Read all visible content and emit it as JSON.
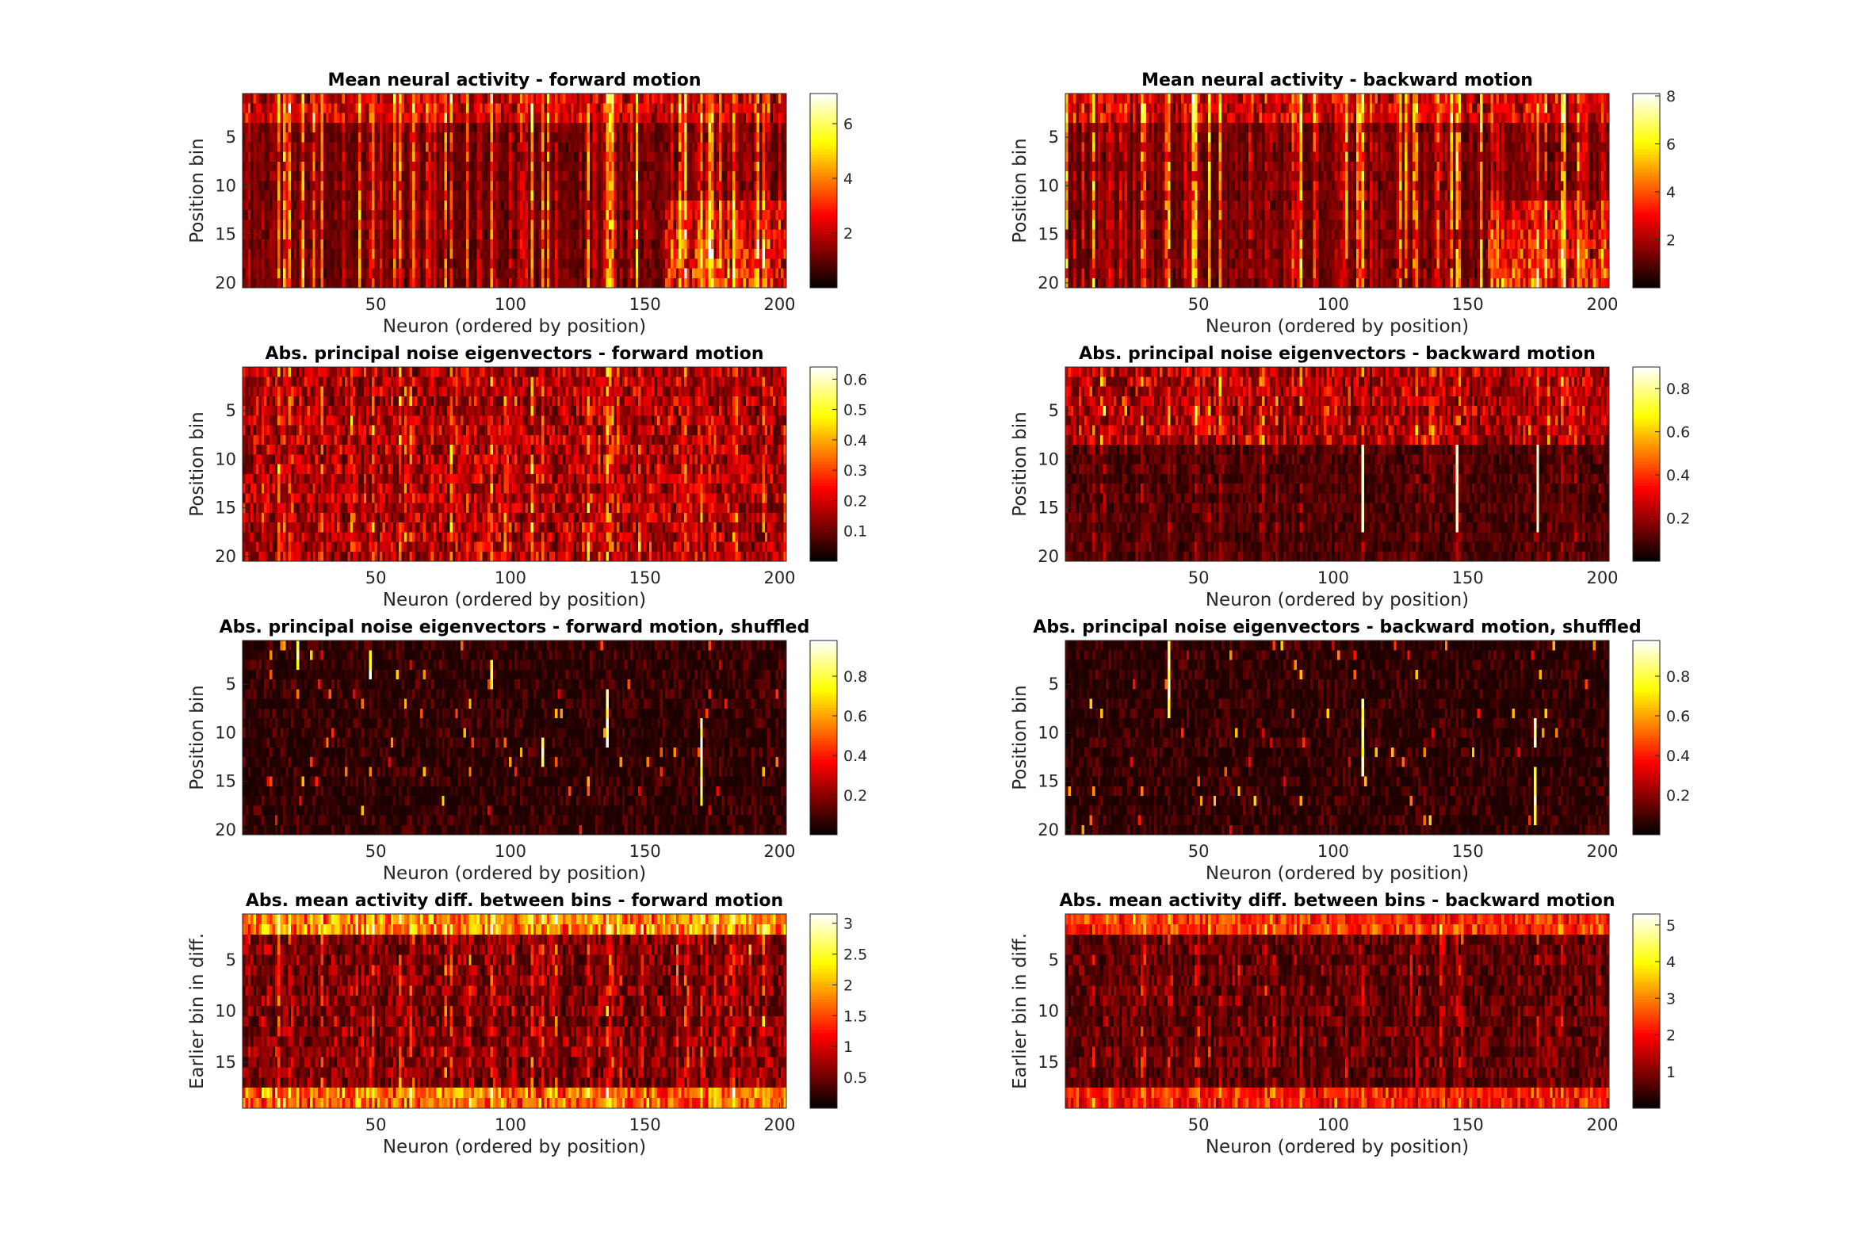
{
  "figure": {
    "background": "#ffffff",
    "colormap": "hot"
  },
  "chart_data": [
    {
      "type": "heatmap",
      "title": "Mean neural activity - forward motion",
      "xlabel": "Neuron (ordered by position)",
      "ylabel": "Position bin",
      "n_cols": 202,
      "n_rows": 20,
      "xticks": [
        50,
        100,
        150,
        200
      ],
      "yticks": [
        5,
        10,
        15,
        20
      ],
      "clim": [
        0,
        7.1
      ],
      "cbar_ticks": [
        2,
        4,
        6
      ],
      "cbar_ticklabels": [
        "2",
        "4",
        "6"
      ],
      "pattern": "activity",
      "direction": "forward",
      "seed": 11
    },
    {
      "type": "heatmap",
      "title": "Mean neural activity - backward motion",
      "xlabel": "Neuron (ordered by position)",
      "ylabel": "Position bin",
      "n_cols": 202,
      "n_rows": 20,
      "xticks": [
        50,
        100,
        150,
        200
      ],
      "yticks": [
        5,
        10,
        15,
        20
      ],
      "clim": [
        0,
        8.1
      ],
      "cbar_ticks": [
        2,
        4,
        6,
        8
      ],
      "cbar_ticklabels": [
        "2",
        "4",
        "6",
        "8"
      ],
      "pattern": "activity",
      "direction": "backward",
      "seed": 23
    },
    {
      "type": "heatmap",
      "title": "Abs. principal noise eigenvectors - forward motion",
      "xlabel": "Neuron (ordered by position)",
      "ylabel": "Position bin",
      "n_cols": 202,
      "n_rows": 20,
      "xticks": [
        50,
        100,
        150,
        200
      ],
      "yticks": [
        5,
        10,
        15,
        20
      ],
      "clim": [
        0,
        0.64
      ],
      "cbar_ticks": [
        0.1,
        0.2,
        0.3,
        0.4,
        0.5,
        0.6
      ],
      "cbar_ticklabels": [
        "0.1",
        "0.2",
        "0.3",
        "0.4",
        "0.5",
        "0.6"
      ],
      "pattern": "eigen",
      "direction": "forward",
      "seed": 37
    },
    {
      "type": "heatmap",
      "title": "Abs. principal noise eigenvectors - backward motion",
      "xlabel": "Neuron (ordered by position)",
      "ylabel": "Position bin",
      "n_cols": 202,
      "n_rows": 20,
      "xticks": [
        50,
        100,
        150,
        200
      ],
      "yticks": [
        5,
        10,
        15,
        20
      ],
      "clim": [
        0,
        0.9
      ],
      "cbar_ticks": [
        0.2,
        0.4,
        0.6,
        0.8
      ],
      "cbar_ticklabels": [
        "0.2",
        "0.4",
        "0.6",
        "0.8"
      ],
      "pattern": "eigen",
      "direction": "backward",
      "seed": 41
    },
    {
      "type": "heatmap",
      "title": "Abs. principal noise eigenvectors - forward motion, shuffled",
      "xlabel": "Neuron (ordered by position)",
      "ylabel": "Position bin",
      "n_cols": 202,
      "n_rows": 20,
      "xticks": [
        50,
        100,
        150,
        200
      ],
      "yticks": [
        5,
        10,
        15,
        20
      ],
      "clim": [
        0,
        0.98
      ],
      "cbar_ticks": [
        0.2,
        0.4,
        0.6,
        0.8
      ],
      "cbar_ticklabels": [
        "0.2",
        "0.4",
        "0.6",
        "0.8"
      ],
      "pattern": "shuffled",
      "direction": "forward",
      "seed": 53
    },
    {
      "type": "heatmap",
      "title": "Abs. principal noise eigenvectors - backward motion, shuffled",
      "xlabel": "Neuron (ordered by position)",
      "ylabel": "Position bin",
      "n_cols": 202,
      "n_rows": 20,
      "xticks": [
        50,
        100,
        150,
        200
      ],
      "yticks": [
        5,
        10,
        15,
        20
      ],
      "clim": [
        0,
        0.98
      ],
      "cbar_ticks": [
        0.2,
        0.4,
        0.6,
        0.8
      ],
      "cbar_ticklabels": [
        "0.2",
        "0.4",
        "0.6",
        "0.8"
      ],
      "pattern": "shuffled",
      "direction": "backward",
      "seed": 67
    },
    {
      "type": "heatmap",
      "title": "Abs. mean activity diff. between bins - forward motion",
      "xlabel": "Neuron (ordered by position)",
      "ylabel": "Earlier bin in diff.",
      "n_cols": 202,
      "n_rows": 19,
      "xticks": [
        50,
        100,
        150,
        200
      ],
      "yticks": [
        5,
        10,
        15
      ],
      "clim": [
        0,
        3.15
      ],
      "cbar_ticks": [
        0.5,
        1,
        1.5,
        2,
        2.5,
        3
      ],
      "cbar_ticklabels": [
        "0.5",
        "1",
        "1.5",
        "2",
        "2.5",
        "3"
      ],
      "pattern": "diff",
      "direction": "forward",
      "seed": 79
    },
    {
      "type": "heatmap",
      "title": "Abs. mean activity diff. between bins - backward motion",
      "xlabel": "Neuron (ordered by position)",
      "ylabel": "Earlier bin in diff.",
      "n_cols": 202,
      "n_rows": 19,
      "xticks": [
        50,
        100,
        150,
        200
      ],
      "yticks": [
        5,
        10,
        15
      ],
      "clim": [
        0,
        5.3
      ],
      "cbar_ticks": [
        1,
        2,
        3,
        4,
        5
      ],
      "cbar_ticklabels": [
        "1",
        "2",
        "3",
        "4",
        "5"
      ],
      "pattern": "diff",
      "direction": "backward",
      "seed": 83
    }
  ]
}
